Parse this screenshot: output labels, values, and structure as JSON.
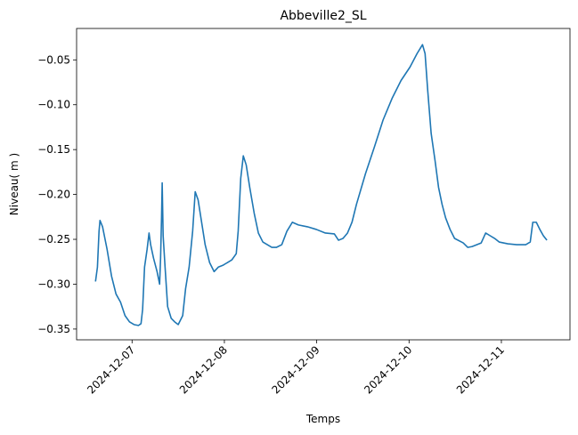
{
  "chart_data": {
    "type": "line",
    "title": "Abbeville2_SL",
    "x_label": "Temps",
    "y_label": "Niveau( m )",
    "x": [
      "2024-12-06 14:30",
      "2024-12-06 15:00",
      "2024-12-06 15:25",
      "2024-12-06 15:40",
      "2024-12-06 16:20",
      "2024-12-06 17:30",
      "2024-12-06 18:40",
      "2024-12-06 19:50",
      "2024-12-06 21:00",
      "2024-12-06 22:10",
      "2024-12-06 23:20",
      "2024-12-07 00:30",
      "2024-12-07 01:40",
      "2024-12-07 02:20",
      "2024-12-07 02:45",
      "2024-12-07 03:15",
      "2024-12-07 03:55",
      "2024-12-07 04:25",
      "2024-12-07 04:50",
      "2024-12-07 05:35",
      "2024-12-07 06:30",
      "2024-12-07 07:10",
      "2024-12-07 07:25",
      "2024-12-07 07:40",
      "2024-12-07 07:50",
      "2024-12-07 08:05",
      "2024-12-07 08:35",
      "2024-12-07 09:15",
      "2024-12-07 10:10",
      "2024-12-07 11:05",
      "2024-12-07 12:00",
      "2024-12-07 13:10",
      "2024-12-07 13:55",
      "2024-12-07 14:50",
      "2024-12-07 15:45",
      "2024-12-07 16:25",
      "2024-12-07 17:10",
      "2024-12-07 18:05",
      "2024-12-07 19:00",
      "2024-12-07 20:10",
      "2024-12-07 21:20",
      "2024-12-07 22:25",
      "2024-12-07 23:35",
      "2024-12-08 00:45",
      "2024-12-08 01:55",
      "2024-12-08 03:05",
      "2024-12-08 03:35",
      "2024-12-08 04:15",
      "2024-12-08 04:55",
      "2024-12-08 05:40",
      "2024-12-08 06:35",
      "2024-12-08 07:45",
      "2024-12-08 08:50",
      "2024-12-08 10:00",
      "2024-12-08 11:10",
      "2024-12-08 12:20",
      "2024-12-08 13:30",
      "2024-12-08 14:55",
      "2024-12-08 16:15",
      "2024-12-08 17:40",
      "2024-12-08 19:15",
      "2024-12-08 21:35",
      "2024-12-08 23:55",
      "2024-12-09 02:15",
      "2024-12-09 04:35",
      "2024-12-09 05:40",
      "2024-12-09 06:50",
      "2024-12-09 08:00",
      "2024-12-09 09:10",
      "2024-12-09 10:20",
      "2024-12-09 12:40",
      "2024-12-09 15:00",
      "2024-12-09 17:15",
      "2024-12-09 19:35",
      "2024-12-09 21:55",
      "2024-12-10 00:15",
      "2024-12-10 02:05",
      "2024-12-10 03:30",
      "2024-12-10 04:10",
      "2024-12-10 04:50",
      "2024-12-10 05:45",
      "2024-12-10 06:45",
      "2024-12-10 07:40",
      "2024-12-10 08:35",
      "2024-12-10 09:30",
      "2024-12-10 10:40",
      "2024-12-10 11:50",
      "2024-12-10 14:05",
      "2024-12-10 15:15",
      "2024-12-10 16:25",
      "2024-12-10 18:45",
      "2024-12-10 19:55",
      "2024-12-10 21:05",
      "2024-12-10 22:15",
      "2024-12-10 23:25",
      "2024-12-11 01:40",
      "2024-12-11 04:00",
      "2024-12-11 06:20",
      "2024-12-11 07:30",
      "2024-12-11 08:10",
      "2024-12-11 09:05",
      "2024-12-11 10:00",
      "2024-12-11 10:55",
      "2024-12-11 11:50"
    ],
    "series": [
      {
        "color": "#1f77b4",
        "values": [
          -0.297,
          -0.281,
          -0.241,
          -0.229,
          -0.236,
          -0.261,
          -0.291,
          -0.311,
          -0.32,
          -0.335,
          -0.342,
          -0.345,
          -0.346,
          -0.344,
          -0.328,
          -0.281,
          -0.261,
          -0.243,
          -0.256,
          -0.271,
          -0.286,
          -0.3,
          -0.271,
          -0.226,
          -0.187,
          -0.246,
          -0.281,
          -0.325,
          -0.338,
          -0.342,
          -0.345,
          -0.335,
          -0.305,
          -0.281,
          -0.241,
          -0.197,
          -0.206,
          -0.231,
          -0.256,
          -0.276,
          -0.286,
          -0.281,
          -0.279,
          -0.276,
          -0.273,
          -0.266,
          -0.241,
          -0.182,
          -0.157,
          -0.167,
          -0.192,
          -0.221,
          -0.243,
          -0.253,
          -0.256,
          -0.259,
          -0.259,
          -0.256,
          -0.241,
          -0.231,
          -0.234,
          -0.236,
          -0.239,
          -0.243,
          -0.244,
          -0.251,
          -0.249,
          -0.243,
          -0.231,
          -0.211,
          -0.177,
          -0.147,
          -0.117,
          -0.093,
          -0.073,
          -0.058,
          -0.043,
          -0.033,
          -0.043,
          -0.083,
          -0.132,
          -0.162,
          -0.192,
          -0.211,
          -0.226,
          -0.239,
          -0.249,
          -0.254,
          -0.259,
          -0.258,
          -0.254,
          -0.243,
          -0.246,
          -0.249,
          -0.253,
          -0.255,
          -0.256,
          -0.256,
          -0.253,
          -0.231,
          -0.231,
          -0.239,
          -0.246,
          -0.251
        ]
      }
    ],
    "xlim": [
      "2024-12-06 09:35",
      "2024-12-11 17:50"
    ],
    "xticks": [
      "2024-12-07",
      "2024-12-08",
      "2024-12-09",
      "2024-12-10",
      "2024-12-11"
    ],
    "ylim": [
      -0.362,
      -0.015
    ],
    "yticks": [
      {
        "value": -0.35,
        "label": "−0.35"
      },
      {
        "value": -0.3,
        "label": "−0.30"
      },
      {
        "value": -0.25,
        "label": "−0.25"
      },
      {
        "value": -0.2,
        "label": "−0.20"
      },
      {
        "value": -0.15,
        "label": "−0.15"
      },
      {
        "value": -0.1,
        "label": "−0.10"
      },
      {
        "value": -0.05,
        "label": "−0.05"
      }
    ],
    "grid": false
  }
}
